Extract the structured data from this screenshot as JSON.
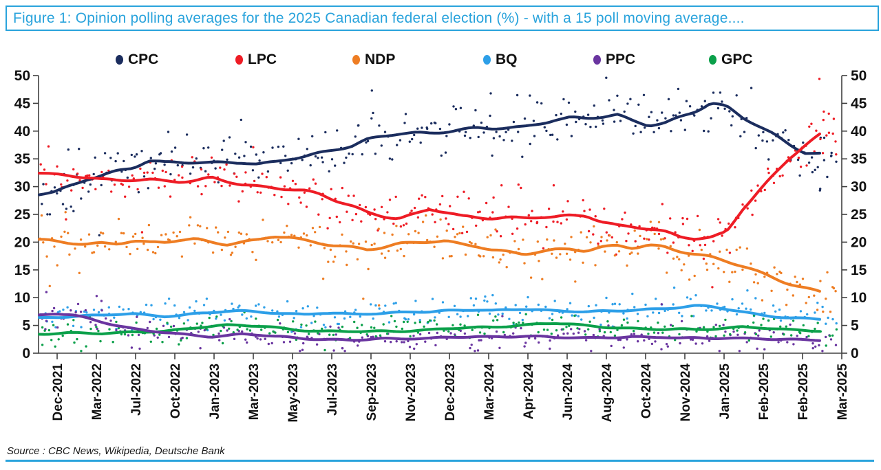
{
  "header": {
    "title": "Figure 1: Opinion polling averages for the 2025 Canadian federal election (%) - with a 15 poll moving average...."
  },
  "footer": {
    "source": "Source : CBC News, Wikipedia, Deutsche Bank"
  },
  "legend": [
    {
      "label": "CPC",
      "color": "#1b2d5e"
    },
    {
      "label": "LPC",
      "color": "#ee1c25"
    },
    {
      "label": "NDP",
      "color": "#ee7d23"
    },
    {
      "label": "BQ",
      "color": "#2d9fe8"
    },
    {
      "label": "PPC",
      "color": "#6a35a0"
    },
    {
      "label": "GPC",
      "color": "#0ba04a"
    }
  ],
  "chart_data": {
    "type": "scatter",
    "title": "Opinion polling averages for the 2025 Canadian federal election (%)",
    "ma_window": 15,
    "ylim": [
      0,
      50
    ],
    "y_ticks": [
      0,
      5,
      10,
      15,
      20,
      25,
      30,
      35,
      40,
      45,
      50
    ],
    "x_tick_labels": [
      "Dec-2021",
      "Mar-2022",
      "Jul-2022",
      "Oct-2022",
      "Jan-2023",
      "Mar-2023",
      "May-2023",
      "Jul-2023",
      "Sep-2023",
      "Nov-2023",
      "Dec-2023",
      "Mar-2024",
      "Apr-2024",
      "Jun-2024",
      "Aug-2024",
      "Oct-2024",
      "Nov-2024",
      "Jan-2025",
      "Feb-2025",
      "Feb-2025",
      "Mar-2025"
    ],
    "series": [
      {
        "name": "CPC",
        "color": "#1b2d5e",
        "scatter_sigma": 2.1,
        "scatter_count": 290,
        "ma": [
          28.6,
          29.0,
          30.2,
          31.4,
          32.1,
          32.8,
          33.3,
          34.6,
          34.3,
          34.4,
          34.5,
          34.4,
          34.4,
          34.3,
          33.9,
          34.3,
          35.0,
          35.5,
          36.2,
          36.8,
          37.3,
          38.4,
          39.0,
          39.5,
          39.7,
          39.7,
          40.0,
          40.3,
          40.5,
          40.4,
          40.5,
          40.7,
          41.4,
          42.1,
          42.5,
          42.3,
          42.5,
          42.8,
          41.8,
          41.1,
          41.5,
          42.6,
          43.6,
          45.0,
          44.3,
          42.4,
          41.0,
          39.5,
          37.7,
          36.2,
          35.9
        ],
        "outliers": [
          [
            0.417,
            47.3
          ],
          [
            0.566,
            46.8
          ],
          [
            0.615,
            46.4
          ],
          [
            0.758,
            46.5
          ],
          [
            0.801,
            47.6
          ],
          [
            0.034,
            26.0
          ],
          [
            0.043,
            25.6
          ],
          [
            0.984,
            38.8
          ],
          [
            0.993,
            35.6
          ],
          [
            0.976,
            33.5
          ],
          [
            0.979,
            29.6
          ]
        ]
      },
      {
        "name": "LPC",
        "color": "#ee1c25",
        "scatter_sigma": 2.1,
        "scatter_count": 290,
        "ma": [
          32.6,
          32.2,
          31.9,
          31.6,
          31.2,
          31.1,
          31.3,
          31.4,
          31.1,
          30.9,
          31.0,
          31.5,
          30.9,
          30.4,
          30.1,
          29.9,
          29.6,
          29.2,
          28.5,
          27.4,
          26.5,
          25.4,
          24.8,
          24.3,
          25.0,
          25.9,
          25.3,
          24.6,
          24.5,
          24.4,
          24.5,
          24.4,
          24.5,
          24.4,
          24.7,
          24.8,
          23.7,
          23.1,
          22.9,
          22.4,
          21.8,
          20.9,
          20.6,
          20.8,
          22.0,
          26.0,
          29.0,
          32.0,
          35.0,
          37.3,
          39.4
        ],
        "outliers": [
          [
            0.978,
            49.4
          ],
          [
            0.996,
            42.2
          ],
          [
            0.983,
            42.0
          ],
          [
            0.99,
            39.7
          ],
          [
            0.999,
            35.8
          ],
          [
            0.819,
            18.4
          ],
          [
            0.833,
            17.0
          ],
          [
            0.952,
            35.2
          ],
          [
            0.962,
            33.8
          ]
        ]
      },
      {
        "name": "NDP",
        "color": "#ee7d23",
        "scatter_sigma": 1.9,
        "scatter_count": 270,
        "ma": [
          20.3,
          20.1,
          19.9,
          19.7,
          19.9,
          19.8,
          20.2,
          19.8,
          19.9,
          20.4,
          20.6,
          20.1,
          19.7,
          20.0,
          20.3,
          21.0,
          20.8,
          20.3,
          19.9,
          19.5,
          19.1,
          18.6,
          19.0,
          19.6,
          19.9,
          20.2,
          20.3,
          19.7,
          19.3,
          18.5,
          18.1,
          17.8,
          18.3,
          18.7,
          18.9,
          18.5,
          19.0,
          19.3,
          18.9,
          19.4,
          19.2,
          18.5,
          17.9,
          17.3,
          16.5,
          15.6,
          14.6,
          13.6,
          12.6,
          11.8,
          11.1
        ],
        "outliers": [
          [
            0.003,
            24.8
          ],
          [
            0.033,
            25.4
          ],
          [
            0.356,
            13.4
          ],
          [
            0.426,
            8.6
          ],
          [
            0.672,
            12.9
          ],
          [
            0.777,
            23.6
          ],
          [
            0.945,
            10.4
          ],
          [
            0.986,
            9.8
          ],
          [
            0.996,
            11.7
          ]
        ]
      },
      {
        "name": "BQ",
        "color": "#2d9fe8",
        "scatter_sigma": 1.25,
        "scatter_count": 240,
        "ma": [
          6.4,
          6.5,
          6.6,
          6.7,
          6.8,
          7.0,
          7.1,
          6.9,
          6.7,
          6.8,
          7.1,
          7.3,
          7.5,
          7.6,
          7.5,
          7.3,
          7.1,
          7.0,
          7.2,
          7.1,
          7.0,
          7.1,
          7.2,
          7.4,
          7.5,
          7.4,
          7.6,
          7.7,
          7.8,
          7.7,
          7.9,
          8.0,
          7.8,
          7.6,
          7.5,
          7.4,
          7.6,
          7.7,
          7.8,
          7.9,
          8.0,
          8.2,
          8.5,
          8.4,
          8.0,
          7.5,
          7.0,
          6.6,
          6.3,
          6.2,
          6.1
        ],
        "outliers": [
          [
            0.21,
            9.8
          ],
          [
            0.559,
            10.2
          ],
          [
            0.898,
            9.9
          ],
          [
            0.322,
            4.3
          ],
          [
            0.719,
            4.8
          ]
        ]
      },
      {
        "name": "PPC",
        "color": "#6a35a0",
        "scatter_sigma": 1.1,
        "scatter_count": 235,
        "ma": [
          6.8,
          7.1,
          6.9,
          6.4,
          5.7,
          5.0,
          4.4,
          4.0,
          3.7,
          3.4,
          3.2,
          3.0,
          3.2,
          3.5,
          3.3,
          3.0,
          2.8,
          2.6,
          2.5,
          2.5,
          2.4,
          2.5,
          2.6,
          2.5,
          2.6,
          2.7,
          2.9,
          3.0,
          3.0,
          2.9,
          2.9,
          3.0,
          3.0,
          2.9,
          2.9,
          2.8,
          2.8,
          2.8,
          2.9,
          2.8,
          2.9,
          2.8,
          2.8,
          2.7,
          2.7,
          2.6,
          2.6,
          2.5,
          2.5,
          2.5,
          2.4
        ],
        "outliers": [
          [
            0.009,
            11.0
          ],
          [
            0.072,
            10.3
          ],
          [
            0.078,
            9.4
          ],
          [
            0.126,
            0.8
          ],
          [
            0.202,
            0.9
          ],
          [
            0.33,
            0.6
          ],
          [
            0.38,
            0.9
          ],
          [
            0.47,
            0.8
          ],
          [
            0.55,
            0.5
          ],
          [
            0.64,
            0.8
          ],
          [
            0.78,
            0.7
          ],
          [
            0.9,
            0.8
          ],
          [
            0.97,
            0.9
          ]
        ]
      },
      {
        "name": "GPC",
        "color": "#0ba04a",
        "scatter_sigma": 1.15,
        "scatter_count": 235,
        "ma": [
          3.5,
          3.6,
          3.7,
          3.6,
          3.5,
          3.6,
          3.8,
          3.9,
          4.0,
          4.3,
          4.6,
          4.8,
          5.0,
          5.0,
          4.9,
          4.7,
          4.4,
          4.1,
          3.9,
          3.9,
          3.9,
          3.9,
          4.0,
          4.0,
          4.1,
          4.2,
          4.4,
          4.5,
          4.6,
          4.7,
          4.9,
          5.1,
          5.3,
          5.4,
          5.2,
          4.9,
          4.7,
          4.6,
          4.5,
          4.4,
          4.3,
          4.3,
          4.2,
          4.3,
          4.5,
          4.8,
          4.7,
          4.4,
          4.2,
          4.1,
          3.9
        ],
        "outliers": [
          [
            0.004,
            1.5
          ],
          [
            0.02,
            1.2
          ],
          [
            0.044,
            1.9
          ],
          [
            0.175,
            1.6
          ],
          [
            0.23,
            1.8
          ],
          [
            0.55,
            6.9
          ],
          [
            0.572,
            6.6
          ],
          [
            0.896,
            6.8
          ]
        ]
      }
    ]
  }
}
